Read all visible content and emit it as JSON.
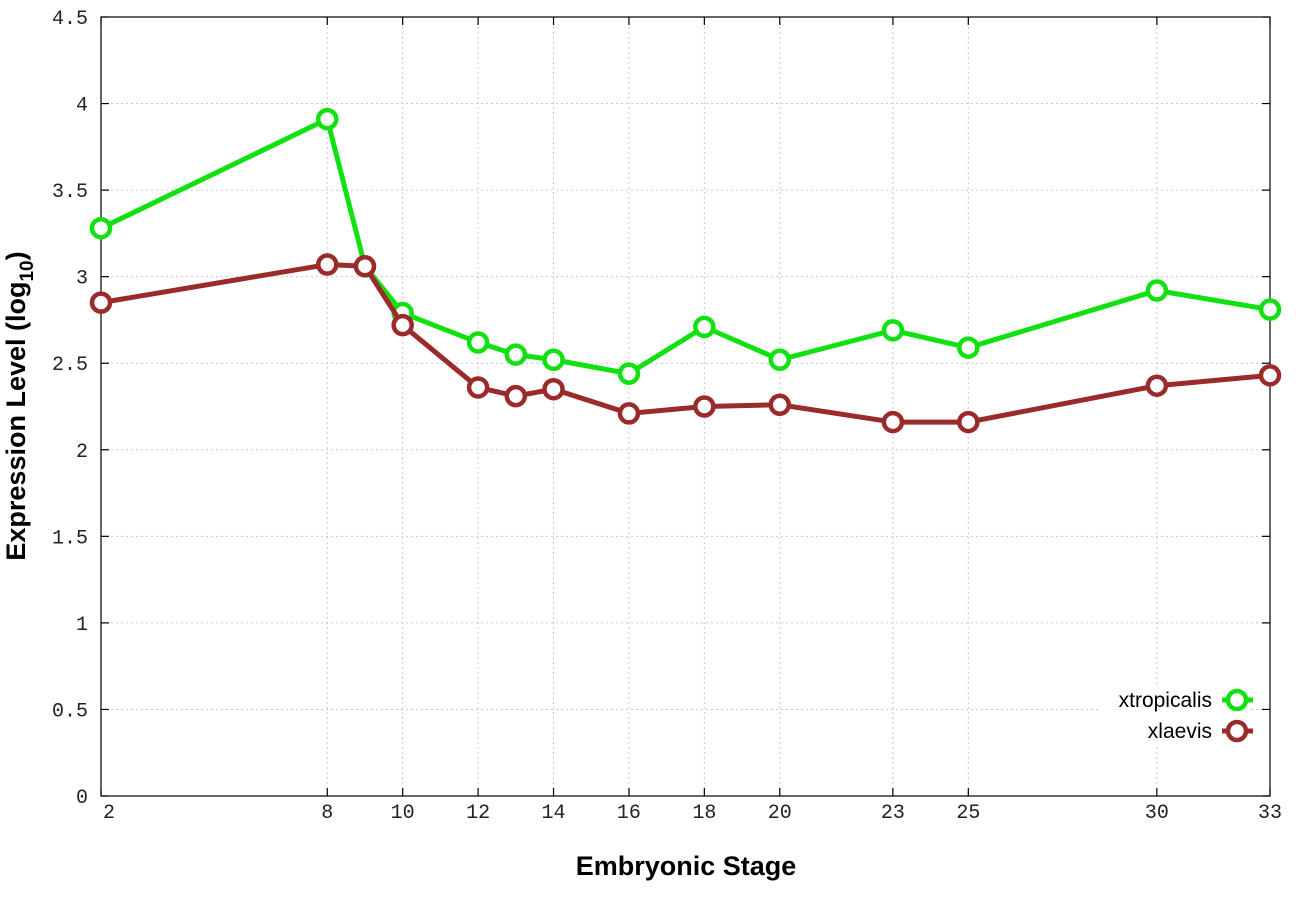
{
  "chart_data": {
    "type": "line",
    "xlabel": "Embryonic Stage",
    "ylabel": {
      "main": "Expression Level (log",
      "sub": "10",
      "end": ")"
    },
    "xlim": [
      2,
      33
    ],
    "ylim": [
      0,
      4.5
    ],
    "grid": true,
    "legend_position": "bottom-right",
    "x_ticks": [
      2,
      8,
      10,
      12,
      14,
      16,
      18,
      20,
      23,
      25,
      30,
      33
    ],
    "y_ticks": [
      0,
      0.5,
      1,
      1.5,
      2,
      2.5,
      3,
      3.5,
      4,
      4.5
    ],
    "y_tick_labels": [
      "0",
      "0.5",
      "1",
      "1.5",
      "2",
      "2.5",
      "3",
      "3.5",
      "4",
      "4.5"
    ],
    "x": [
      2,
      8,
      9,
      10,
      12,
      13,
      14,
      16,
      18,
      20,
      23,
      25,
      30,
      33
    ],
    "series": [
      {
        "name": "xtropicalis",
        "color": "#11e011",
        "values": [
          3.28,
          3.91,
          3.06,
          2.79,
          2.62,
          2.55,
          2.52,
          2.44,
          2.71,
          2.52,
          2.69,
          2.59,
          2.92,
          2.81
        ]
      },
      {
        "name": "xlaevis",
        "color": "#9b2a2a",
        "values": [
          2.85,
          3.07,
          3.06,
          2.72,
          2.36,
          2.31,
          2.35,
          2.21,
          2.25,
          2.26,
          2.16,
          2.16,
          2.37,
          2.43
        ]
      }
    ]
  }
}
